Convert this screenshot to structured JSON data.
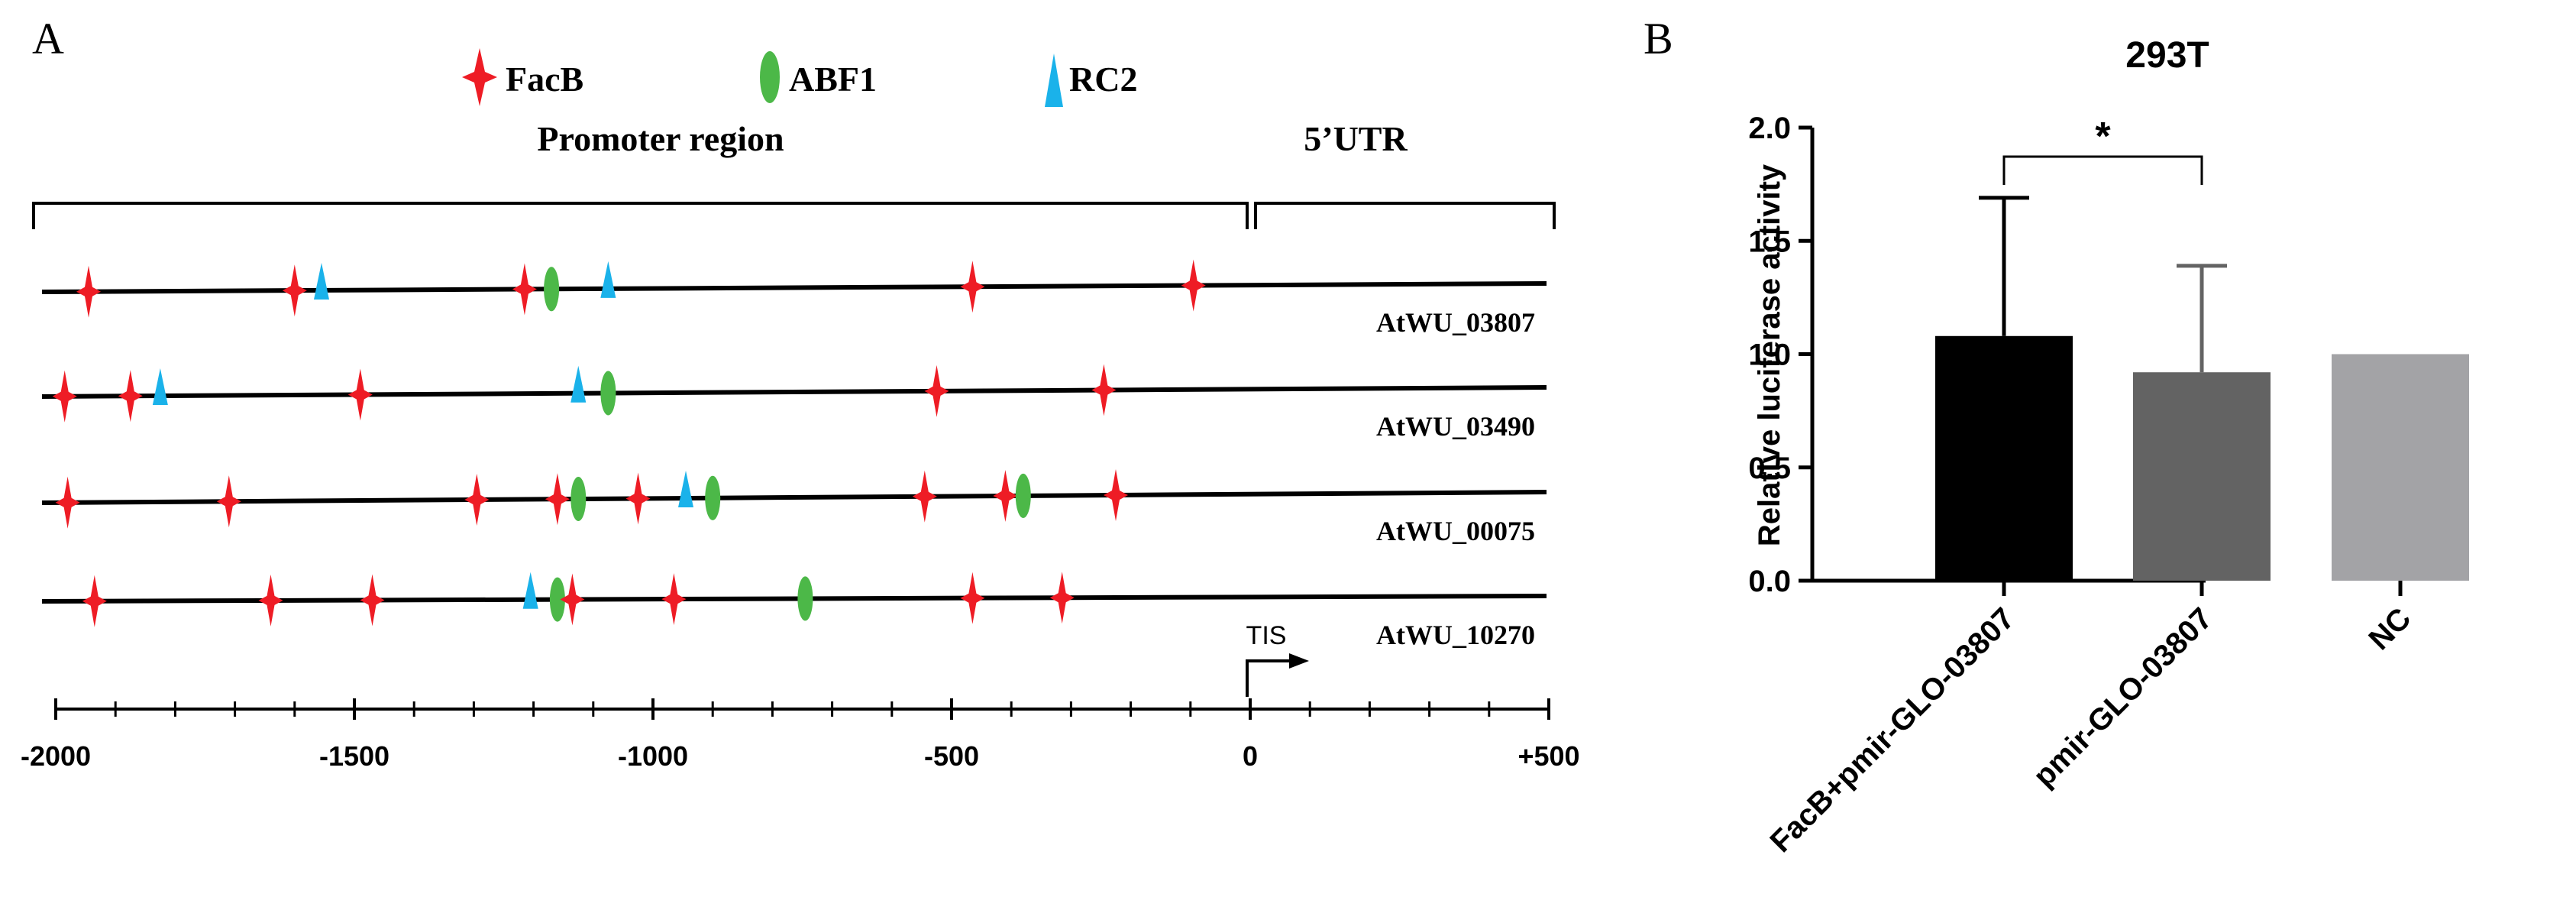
{
  "chart_data": [
    {
      "type": "other",
      "panel_label": "A",
      "title": "",
      "legend": [
        {
          "name": "FacB",
          "marker": "star",
          "color": "#ee1c25"
        },
        {
          "name": "ABF1",
          "marker": "ellipse",
          "color": "#4cb848"
        },
        {
          "name": "RC2",
          "marker": "triangle",
          "color": "#1ab2ea"
        }
      ],
      "regions": {
        "promoter": "Promoter region",
        "utr": "5’UTR"
      },
      "axis": {
        "range": [
          -2000,
          500
        ],
        "ticks": [
          -2000,
          -1500,
          -1000,
          -500,
          0,
          500
        ],
        "tick_labels": [
          "-2000",
          "-1500",
          "-1000",
          "-500",
          "0",
          "+500"
        ],
        "minor_step": 100
      },
      "tis_label": "TIS",
      "tracks": [
        {
          "name": "AtWU_03807",
          "sites": [
            {
              "type": "FacB",
              "pos": -1945
            },
            {
              "type": "FacB",
              "pos": -1600
            },
            {
              "type": "RC2",
              "pos": -1555
            },
            {
              "type": "FacB",
              "pos": -1215
            },
            {
              "type": "ABF1",
              "pos": -1170
            },
            {
              "type": "RC2",
              "pos": -1075
            },
            {
              "type": "FacB",
              "pos": -465
            },
            {
              "type": "FacB",
              "pos": -95
            }
          ]
        },
        {
          "name": "AtWU_03490",
          "sites": [
            {
              "type": "FacB",
              "pos": -1985
            },
            {
              "type": "FacB",
              "pos": -1875
            },
            {
              "type": "RC2",
              "pos": -1825
            },
            {
              "type": "FacB",
              "pos": -1490
            },
            {
              "type": "RC2",
              "pos": -1125
            },
            {
              "type": "ABF1",
              "pos": -1075
            },
            {
              "type": "FacB",
              "pos": -525
            },
            {
              "type": "FacB",
              "pos": -245
            }
          ]
        },
        {
          "name": "AtWU_00075",
          "sites": [
            {
              "type": "FacB",
              "pos": -1980
            },
            {
              "type": "FacB",
              "pos": -1710
            },
            {
              "type": "FacB",
              "pos": -1295
            },
            {
              "type": "FacB",
              "pos": -1160
            },
            {
              "type": "ABF1",
              "pos": -1125
            },
            {
              "type": "FacB",
              "pos": -1025
            },
            {
              "type": "RC2",
              "pos": -945
            },
            {
              "type": "ABF1",
              "pos": -900
            },
            {
              "type": "FacB",
              "pos": -545
            },
            {
              "type": "FacB",
              "pos": -410
            },
            {
              "type": "ABF1",
              "pos": -380
            },
            {
              "type": "FacB",
              "pos": -225
            }
          ]
        },
        {
          "name": "AtWU_10270",
          "sites": [
            {
              "type": "FacB",
              "pos": -1935
            },
            {
              "type": "FacB",
              "pos": -1640
            },
            {
              "type": "FacB",
              "pos": -1470
            },
            {
              "type": "RC2",
              "pos": -1205
            },
            {
              "type": "ABF1",
              "pos": -1160
            },
            {
              "type": "FacB",
              "pos": -1135
            },
            {
              "type": "FacB",
              "pos": -965
            },
            {
              "type": "ABF1",
              "pos": -745
            },
            {
              "type": "FacB",
              "pos": -465
            },
            {
              "type": "FacB",
              "pos": -315
            }
          ]
        }
      ]
    },
    {
      "type": "bar",
      "panel_label": "B",
      "title": "293T",
      "xlabel": "",
      "ylabel": "Relative luciferase activity",
      "categories": [
        "FacB+pmir-GLO-03807",
        "pmir-GLO-03807",
        "NC"
      ],
      "values": [
        1.08,
        0.92,
        1.0
      ],
      "error_upper": [
        1.69,
        1.39,
        null
      ],
      "colors": [
        "#000000",
        "#636363",
        "#a3a3a6"
      ],
      "ylim": [
        0,
        2.0
      ],
      "yticks": [
        "0.0",
        "0.5",
        "1.0",
        "1.5",
        "2.0"
      ],
      "annotation": {
        "text": "*",
        "between": [
          0,
          1
        ]
      }
    }
  ]
}
